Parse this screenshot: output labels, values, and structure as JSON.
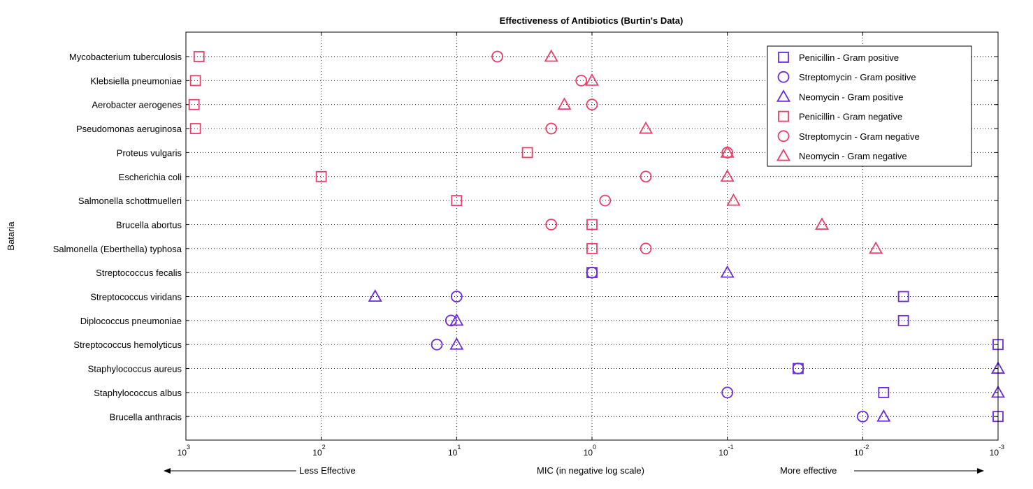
{
  "chart_data": {
    "type": "scatter",
    "title": "Effectiveness of Antibiotics (Burtin's Data)",
    "xlabel": "MIC (in negative log scale)",
    "ylabel": "Bataria",
    "annotations": {
      "left": "Less Effective",
      "right": "More effective"
    },
    "x_scale": "log-reversed",
    "xlim": [
      1000,
      0.001
    ],
    "grid": true,
    "legend_position": "top-right",
    "x_ticks": [
      {
        "base": "10",
        "exp": "3",
        "value": 1000
      },
      {
        "base": "10",
        "exp": "2",
        "value": 100
      },
      {
        "base": "10",
        "exp": "1",
        "value": 10
      },
      {
        "base": "10",
        "exp": "0",
        "value": 1
      },
      {
        "base": "10",
        "exp": "-1",
        "value": 0.1
      },
      {
        "base": "10",
        "exp": "-2",
        "value": 0.01
      },
      {
        "base": "10",
        "exp": "-3",
        "value": 0.001
      }
    ],
    "categories": [
      "Mycobacterium tuberculosis",
      "Klebsiella pneumoniae",
      "Aerobacter aerogenes",
      "Pseudomonas aeruginosa",
      "Proteus vulgaris",
      "Escherichia coli",
      "Salmonella schottmuelleri",
      "Brucella abortus",
      "Salmonella (Eberthella) typhosa",
      "Streptococcus fecalis",
      "Streptococcus viridans",
      "Diplococcus pneumoniae",
      "Streptococcus hemolyticus",
      "Staphylococcus aureus",
      "Staphylococcus albus",
      "Brucella anthracis"
    ],
    "colors": {
      "gram_positive": "#6a2bd9",
      "gram_negative": "#e8406a"
    },
    "series": [
      {
        "name": "Penicillin - Gram positive",
        "marker": "square",
        "group": "gram_positive",
        "points": [
          {
            "bacteria": "Streptococcus fecalis",
            "mic": 1
          },
          {
            "bacteria": "Streptococcus viridans",
            "mic": 0.005
          },
          {
            "bacteria": "Diplococcus pneumoniae",
            "mic": 0.005
          },
          {
            "bacteria": "Streptococcus hemolyticus",
            "mic": 0.001
          },
          {
            "bacteria": "Staphylococcus aureus",
            "mic": 0.03
          },
          {
            "bacteria": "Staphylococcus albus",
            "mic": 0.007
          },
          {
            "bacteria": "Brucella anthracis",
            "mic": 0.001
          }
        ]
      },
      {
        "name": "Streptomycin - Gram positive",
        "marker": "circle",
        "group": "gram_positive",
        "points": [
          {
            "bacteria": "Streptococcus fecalis",
            "mic": 1
          },
          {
            "bacteria": "Streptococcus viridans",
            "mic": 10
          },
          {
            "bacteria": "Diplococcus pneumoniae",
            "mic": 11
          },
          {
            "bacteria": "Streptococcus hemolyticus",
            "mic": 14
          },
          {
            "bacteria": "Staphylococcus aureus",
            "mic": 0.03
          },
          {
            "bacteria": "Staphylococcus albus",
            "mic": 0.1
          },
          {
            "bacteria": "Brucella anthracis",
            "mic": 0.01
          }
        ]
      },
      {
        "name": "Neomycin - Gram positive",
        "marker": "triangle",
        "group": "gram_positive",
        "points": [
          {
            "bacteria": "Streptococcus fecalis",
            "mic": 0.1
          },
          {
            "bacteria": "Streptococcus viridans",
            "mic": 40
          },
          {
            "bacteria": "Diplococcus pneumoniae",
            "mic": 10
          },
          {
            "bacteria": "Streptococcus hemolyticus",
            "mic": 10
          },
          {
            "bacteria": "Staphylococcus aureus",
            "mic": 0.001
          },
          {
            "bacteria": "Staphylococcus albus",
            "mic": 0.001
          },
          {
            "bacteria": "Brucella anthracis",
            "mic": 0.007
          }
        ]
      },
      {
        "name": "Penicillin - Gram negative",
        "marker": "square",
        "group": "gram_negative",
        "points": [
          {
            "bacteria": "Mycobacterium tuberculosis",
            "mic": 800
          },
          {
            "bacteria": "Klebsiella pneumoniae",
            "mic": 850
          },
          {
            "bacteria": "Aerobacter aerogenes",
            "mic": 870
          },
          {
            "bacteria": "Pseudomonas aeruginosa",
            "mic": 850
          },
          {
            "bacteria": "Proteus vulgaris",
            "mic": 3
          },
          {
            "bacteria": "Escherichia coli",
            "mic": 100
          },
          {
            "bacteria": "Salmonella schottmuelleri",
            "mic": 10
          },
          {
            "bacteria": "Brucella abortus",
            "mic": 1
          },
          {
            "bacteria": "Salmonella (Eberthella) typhosa",
            "mic": 1
          }
        ]
      },
      {
        "name": "Streptomycin - Gram negative",
        "marker": "circle",
        "group": "gram_negative",
        "points": [
          {
            "bacteria": "Mycobacterium tuberculosis",
            "mic": 5
          },
          {
            "bacteria": "Klebsiella pneumoniae",
            "mic": 1.2
          },
          {
            "bacteria": "Aerobacter aerogenes",
            "mic": 1
          },
          {
            "bacteria": "Pseudomonas aeruginosa",
            "mic": 2
          },
          {
            "bacteria": "Proteus vulgaris",
            "mic": 0.1
          },
          {
            "bacteria": "Escherichia coli",
            "mic": 0.4
          },
          {
            "bacteria": "Salmonella schottmuelleri",
            "mic": 0.8
          },
          {
            "bacteria": "Brucella abortus",
            "mic": 2
          },
          {
            "bacteria": "Salmonella (Eberthella) typhosa",
            "mic": 0.4
          }
        ]
      },
      {
        "name": "Neomycin - Gram negative",
        "marker": "triangle",
        "group": "gram_negative",
        "points": [
          {
            "bacteria": "Mycobacterium tuberculosis",
            "mic": 2
          },
          {
            "bacteria": "Klebsiella pneumoniae",
            "mic": 1
          },
          {
            "bacteria": "Aerobacter aerogenes",
            "mic": 1.6
          },
          {
            "bacteria": "Pseudomonas aeruginosa",
            "mic": 0.4
          },
          {
            "bacteria": "Proteus vulgaris",
            "mic": 0.1
          },
          {
            "bacteria": "Escherichia coli",
            "mic": 0.1
          },
          {
            "bacteria": "Salmonella schottmuelleri",
            "mic": 0.09
          },
          {
            "bacteria": "Brucella abortus",
            "mic": 0.02
          },
          {
            "bacteria": "Salmonella (Eberthella) typhosa",
            "mic": 0.008
          }
        ]
      }
    ]
  }
}
